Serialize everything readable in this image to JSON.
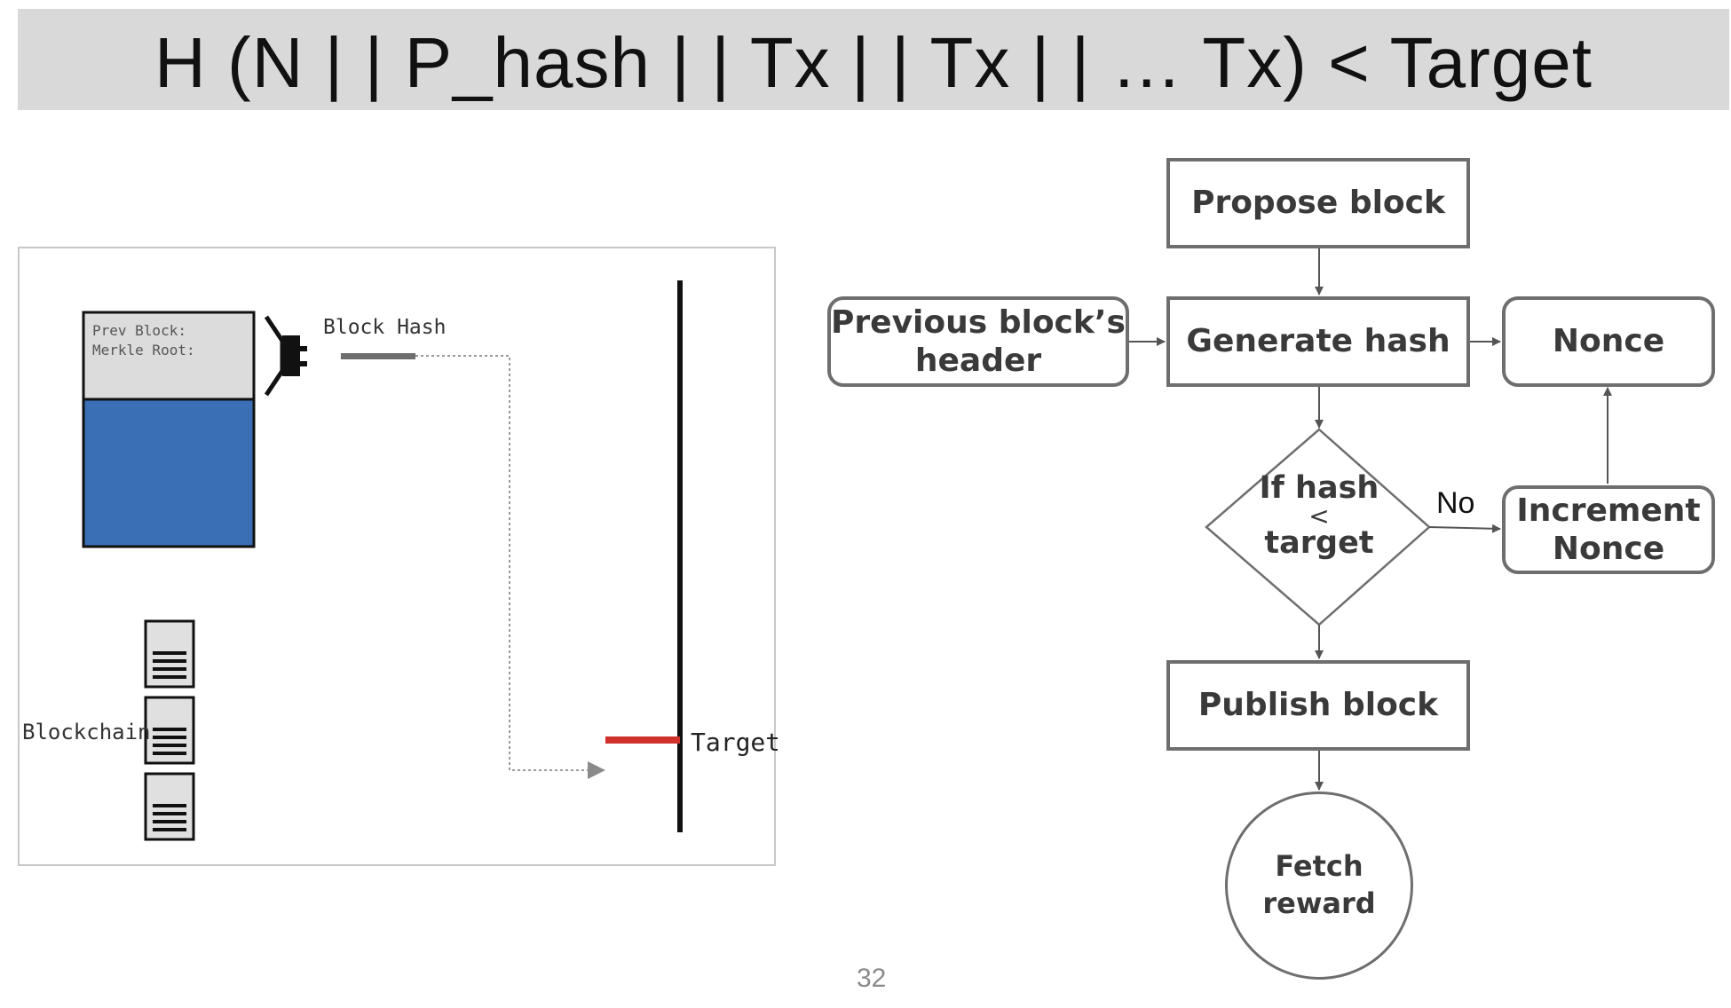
{
  "slide": {
    "title": "H (N | | P_hash | | Tx | | Tx | | … Tx) < Target",
    "page_number": "32"
  },
  "mining_illustration": {
    "block_label_line1": "Prev Block:",
    "block_label_line2": "Merkle Root:",
    "block_hash_label": "Block Hash",
    "blockchain_label": "Blockchain",
    "target_label": "Target",
    "colors": {
      "block_body": "#3a6fb5",
      "block_header": "#dcdcdc",
      "target_marker": "#d0312d",
      "hash_bar": "#6e6e6e"
    }
  },
  "flowchart": {
    "propose_block": "Propose block",
    "previous_header_line1": "Previous block’s",
    "previous_header_line2": "header",
    "generate_hash": "Generate hash",
    "nonce": "Nonce",
    "decision_line1": "If hash",
    "decision_line2": "<",
    "decision_line3": "target",
    "no_label": "No",
    "increment_nonce_line1": "Increment",
    "increment_nonce_line2": "Nonce",
    "publish_block": "Publish block",
    "fetch_reward_line1": "Fetch",
    "fetch_reward_line2": "reward"
  }
}
